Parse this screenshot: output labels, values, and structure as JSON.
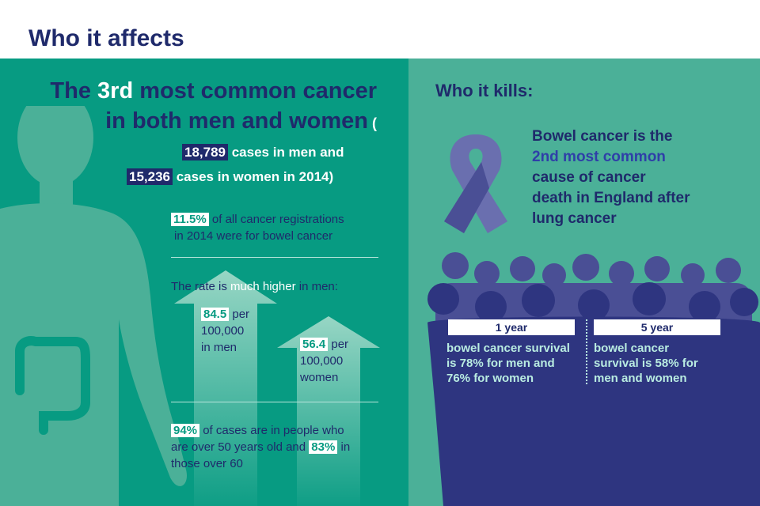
{
  "title": "Who it affects",
  "left": {
    "headline_pre": "The ",
    "headline_rank": "3rd",
    "headline_mid": " most common cancer in both men and women",
    "cases_open": " (",
    "cases_men_value": "18,789",
    "cases_men_text": " cases in men and",
    "cases_women_value": "15,236",
    "cases_women_text": " cases in women in 2014",
    "cases_close": ")",
    "registration_value": "11.5%",
    "registration_text1": " of all cancer registrations",
    "registration_text2": "in 2014 were for bowel cancer",
    "rate_pre": "The rate is ",
    "rate_highlight": "much higher",
    "rate_post": " in men:",
    "men_value": "84.5",
    "men_per": " per",
    "men_line2": "100,000",
    "men_line3": "in men",
    "women_value": "56.4",
    "women_per": " per",
    "women_line2": "100,000",
    "women_line3": "women",
    "age_value1": "94%",
    "age_text1": " of cases are in people who",
    "age_text2": "are over 50 years old and ",
    "age_value2": "83%",
    "age_text3": " in",
    "age_text4": "those over 60"
  },
  "right": {
    "kills_title": "Who it kills:",
    "death_line1": "Bowel cancer is the",
    "death_line2": "2nd most common",
    "death_line3": "cause of cancer",
    "death_line4": "death in England after",
    "death_line5": "lung cancer",
    "year1_label": "1 year",
    "year1_line1": "bowel cancer survival",
    "year1_line2": "is 78% for men and",
    "year1_line3": "76% for women",
    "year5_label": "5 year",
    "year5_line1": "bowel cancer",
    "year5_line2": "survival is 58% for",
    "year5_line3": "men and women"
  },
  "colors": {
    "navy": "#1f2a6b",
    "teal_dark": "#079b82",
    "teal_light": "#4bb098",
    "ribbon": "#6a6faf",
    "crowd_dark": "#2e3580",
    "crowd_mid": "#4a4f95"
  },
  "icons": [
    "human-body-icon",
    "intestine-icon",
    "awareness-ribbon-icon",
    "crowd-silhouette-icon",
    "up-arrow-icon"
  ]
}
